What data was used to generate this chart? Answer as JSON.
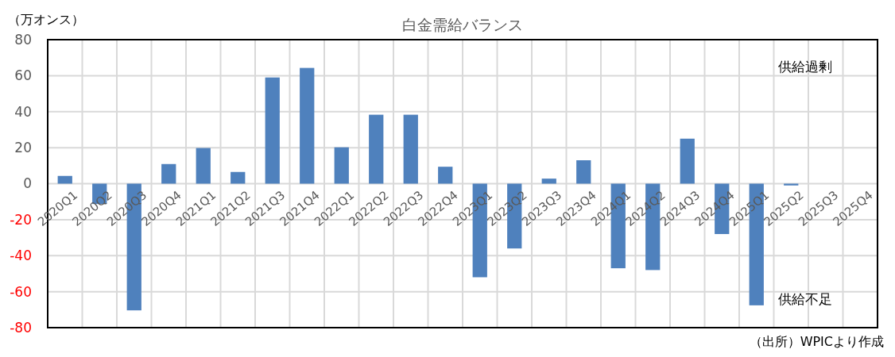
{
  "chart_data": {
    "type": "bar",
    "title": "白金需給バランス",
    "ylabel": "（万オンス）",
    "categories": [
      "2020Q1",
      "2020Q2",
      "2020Q3",
      "2020Q4",
      "2021Q1",
      "2021Q2",
      "2021Q3",
      "2021Q4",
      "2022Q1",
      "2022Q2",
      "2022Q3",
      "2022Q4",
      "2023Q1",
      "2023Q2",
      "2023Q3",
      "2023Q4",
      "2024Q1",
      "2024Q2",
      "2024Q3",
      "2024Q4",
      "2025Q1",
      "2025Q2",
      "2025Q3",
      "2025Q4"
    ],
    "values": [
      4.3,
      -11.3,
      -70.4,
      10.9,
      19.8,
      6.5,
      59,
      64.3,
      20.2,
      38.3,
      38.3,
      9.4,
      -52,
      -36,
      2.8,
      13,
      -47,
      -48,
      25,
      -28,
      -67.6,
      -1,
      null,
      null
    ],
    "color": "#4f81bd",
    "ylim": [
      -80,
      80
    ],
    "yticks": [
      -80,
      -60,
      -40,
      -20,
      0,
      20,
      40,
      60,
      80
    ],
    "grid": true,
    "annotations": [
      "供給過剰",
      "供給不足",
      "（出所）WPICより作成"
    ]
  }
}
